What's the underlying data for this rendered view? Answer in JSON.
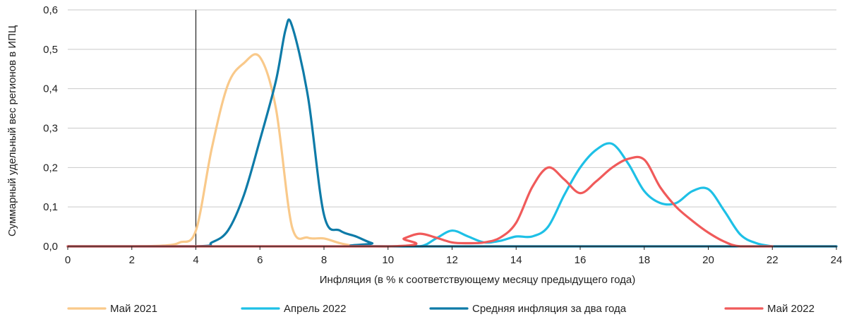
{
  "chart_data": {
    "type": "line",
    "xlabel": "Инфляция (в % к соответствующему месяцу предыдущего года)",
    "ylabel": "Суммарный удельный вес регионов в ИПЦ",
    "xlim": [
      0,
      24
    ],
    "ylim": [
      0,
      0.6
    ],
    "x_ticks": [
      "0",
      "2",
      "4",
      "6",
      "8",
      "10",
      "12",
      "14",
      "16",
      "18",
      "20",
      "22",
      "24"
    ],
    "y_ticks": [
      "0,0",
      "0,1",
      "0,2",
      "0,3",
      "0,4",
      "0,5",
      "0,6"
    ],
    "grid": "horizontal",
    "reference_line_x": 4,
    "legend_position": "bottom",
    "series": [
      {
        "name": "Май 2021",
        "color": "#F9C98A",
        "points": [
          [
            0,
            0
          ],
          [
            1,
            0
          ],
          [
            2,
            0
          ],
          [
            3,
            0.002
          ],
          [
            3.5,
            0.01
          ],
          [
            4,
            0.04
          ],
          [
            4.5,
            0.25
          ],
          [
            5,
            0.41
          ],
          [
            5.5,
            0.465
          ],
          [
            6,
            0.48
          ],
          [
            6.5,
            0.35
          ],
          [
            7,
            0.05
          ],
          [
            7.5,
            0.022
          ],
          [
            8,
            0.02
          ],
          [
            8.5,
            0.008
          ],
          [
            9,
            0
          ]
        ]
      },
      {
        "name": "Апрель 2022",
        "color": "#1EC0E6",
        "points": [
          [
            0,
            0
          ],
          [
            10,
            0
          ],
          [
            11,
            0
          ],
          [
            11.5,
            0.02
          ],
          [
            12,
            0.04
          ],
          [
            12.5,
            0.025
          ],
          [
            13,
            0.01
          ],
          [
            13.5,
            0.014
          ],
          [
            14,
            0.025
          ],
          [
            14.5,
            0.025
          ],
          [
            15,
            0.05
          ],
          [
            15.5,
            0.13
          ],
          [
            16,
            0.2
          ],
          [
            16.5,
            0.245
          ],
          [
            17,
            0.26
          ],
          [
            17.5,
            0.21
          ],
          [
            18,
            0.14
          ],
          [
            18.5,
            0.11
          ],
          [
            19,
            0.11
          ],
          [
            19.5,
            0.14
          ],
          [
            20,
            0.145
          ],
          [
            20.5,
            0.09
          ],
          [
            21,
            0.03
          ],
          [
            21.5,
            0.008
          ],
          [
            22,
            0
          ]
        ]
      },
      {
        "name": "Средняя инфляция за два года",
        "color": "#0E7BA8",
        "points": [
          [
            0,
            0
          ],
          [
            4,
            0
          ],
          [
            4.5,
            0.01
          ],
          [
            5,
            0.04
          ],
          [
            5.5,
            0.13
          ],
          [
            6,
            0.27
          ],
          [
            6.5,
            0.42
          ],
          [
            6.8,
            0.55
          ],
          [
            7,
            0.56
          ],
          [
            7.5,
            0.38
          ],
          [
            8,
            0.08
          ],
          [
            8.5,
            0.04
          ],
          [
            9,
            0.025
          ],
          [
            9.5,
            0.008
          ],
          [
            10,
            0
          ],
          [
            24,
            0
          ]
        ]
      },
      {
        "name": "Май 2022",
        "color": "#F05A5A",
        "points": [
          [
            0,
            0
          ],
          [
            10,
            0
          ],
          [
            10.5,
            0.02
          ],
          [
            11,
            0.032
          ],
          [
            11.5,
            0.022
          ],
          [
            12,
            0.01
          ],
          [
            12.5,
            0.008
          ],
          [
            13,
            0.01
          ],
          [
            13.5,
            0.022
          ],
          [
            14,
            0.06
          ],
          [
            14.5,
            0.15
          ],
          [
            15,
            0.2
          ],
          [
            15.5,
            0.17
          ],
          [
            16,
            0.135
          ],
          [
            16.5,
            0.165
          ],
          [
            17,
            0.2
          ],
          [
            17.5,
            0.222
          ],
          [
            18,
            0.22
          ],
          [
            18.5,
            0.15
          ],
          [
            19,
            0.1
          ],
          [
            19.5,
            0.065
          ],
          [
            20,
            0.035
          ],
          [
            20.5,
            0.012
          ],
          [
            21,
            0
          ],
          [
            22,
            0
          ]
        ]
      }
    ]
  }
}
